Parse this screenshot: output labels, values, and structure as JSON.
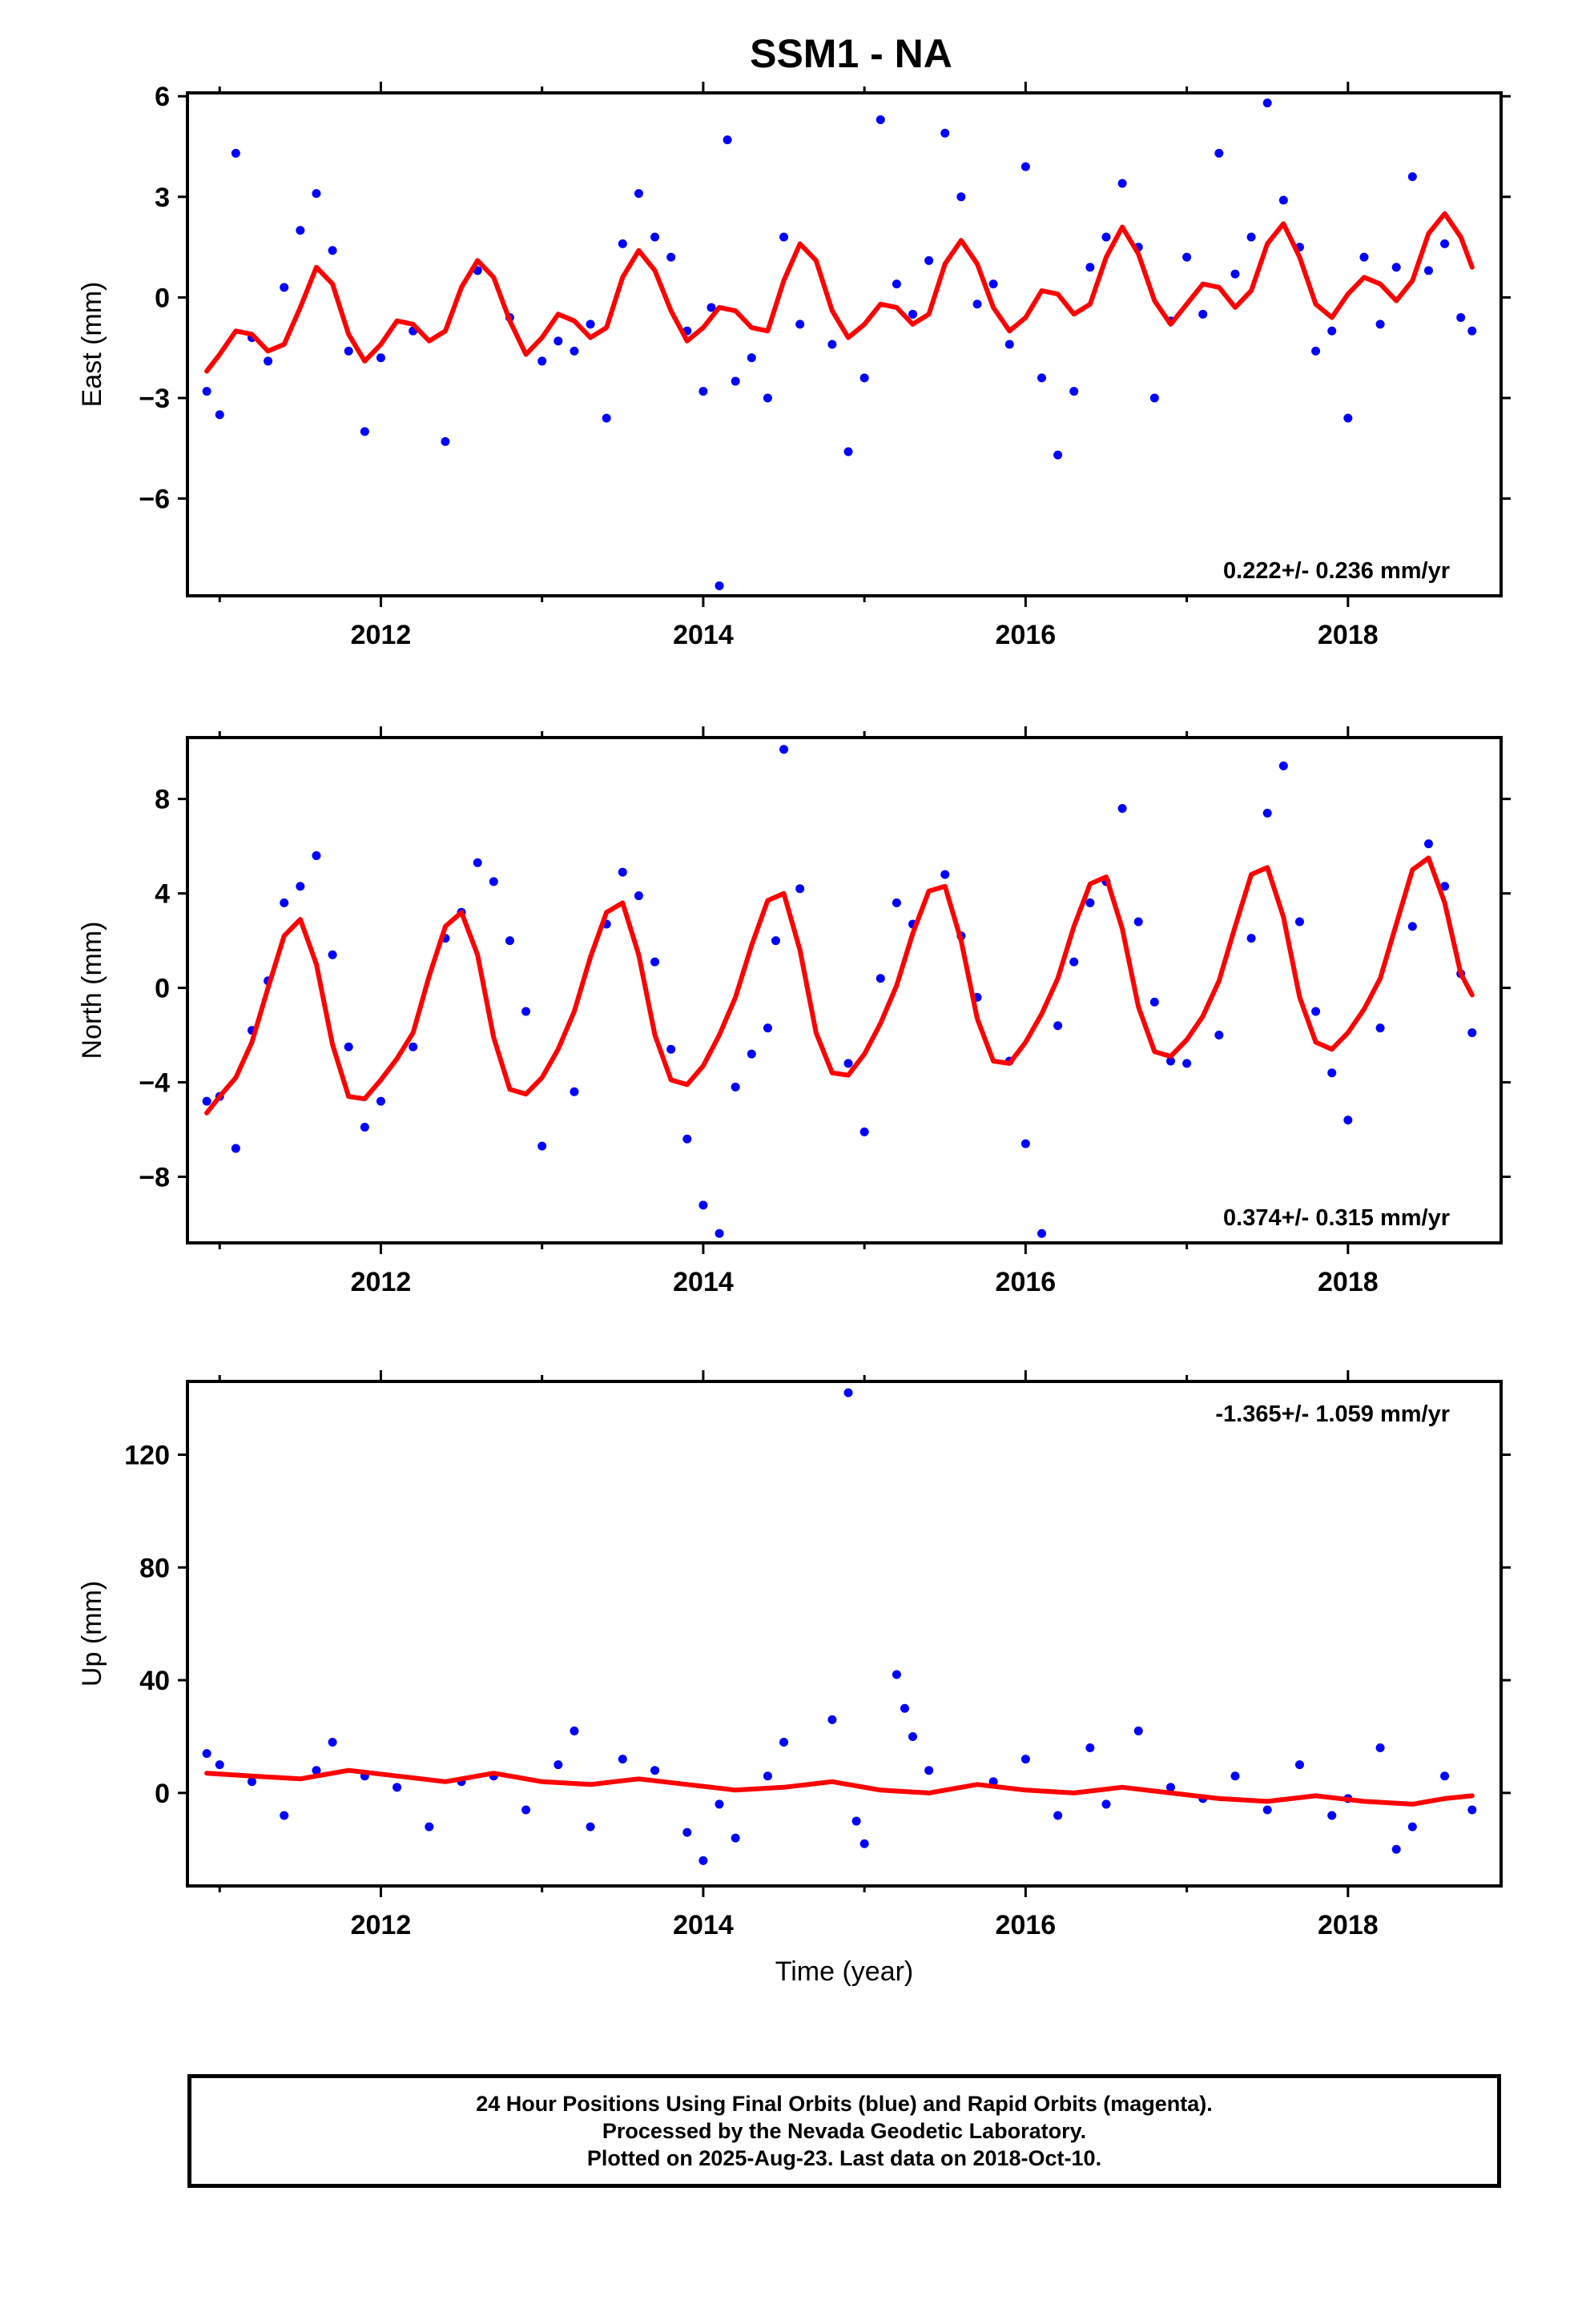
{
  "title": "SSM1 - NA",
  "footer": {
    "line1": "24 Hour Positions Using Final Orbits (blue) and Rapid Orbits (magenta).",
    "line2": "Processed by the Nevada Geodetic Laboratory.",
    "line3": "Plotted on 2025-Aug-23. Last data on 2018-Oct-10."
  },
  "colors": {
    "final_orbits": "#0000ff",
    "model_fit": "#ff0000",
    "axes": "#000000"
  },
  "chart_data": [
    {
      "type": "scatter",
      "panel": "east",
      "ylabel": "East (mm)",
      "xlabel": "",
      "xlim": [
        2010.8,
        2018.95
      ],
      "ylim": [
        -8.9,
        6.1
      ],
      "yticks": [
        -6,
        -3,
        0,
        3,
        6
      ],
      "ytick_labels": [
        "−6",
        "−3",
        "0",
        "3",
        "6"
      ],
      "xticks": [
        2012,
        2014,
        2016,
        2018
      ],
      "xtick_labels": [
        "2012",
        "2014",
        "2016",
        "2018"
      ],
      "grid": false,
      "annotation": "0.222+/- 0.236 mm/yr",
      "annotation_position": "bottom-right",
      "rate_mm_per_yr": 0.222,
      "rate_sigma_mm_per_yr": 0.236,
      "series": [
        {
          "name": "Final Orbits",
          "color": "#0000ff",
          "x": [
            2010.92,
            2011.0,
            2011.1,
            2011.2,
            2011.3,
            2011.4,
            2011.5,
            2011.6,
            2011.7,
            2011.8,
            2011.9,
            2012.0,
            2012.2,
            2012.4,
            2012.6,
            2012.8,
            2013.0,
            2013.1,
            2013.2,
            2013.3,
            2013.4,
            2013.5,
            2013.6,
            2013.7,
            2013.8,
            2013.9,
            2014.0,
            2014.05,
            2014.1,
            2014.15,
            2014.2,
            2014.3,
            2014.4,
            2014.5,
            2014.6,
            2014.8,
            2014.9,
            2015.0,
            2015.1,
            2015.2,
            2015.3,
            2015.4,
            2015.5,
            2015.6,
            2015.7,
            2015.8,
            2015.9,
            2016.0,
            2016.1,
            2016.2,
            2016.3,
            2016.4,
            2016.5,
            2016.6,
            2016.7,
            2016.8,
            2016.9,
            2017.0,
            2017.1,
            2017.2,
            2017.3,
            2017.4,
            2017.5,
            2017.6,
            2017.7,
            2017.8,
            2017.9,
            2018.0,
            2018.1,
            2018.2,
            2018.3,
            2018.4,
            2018.5,
            2018.6,
            2018.7,
            2018.77
          ],
          "values": [
            -2.8,
            -3.5,
            4.3,
            -1.2,
            -1.9,
            0.3,
            2.0,
            3.1,
            1.4,
            -1.6,
            -4.0,
            -1.8,
            -1.0,
            -4.3,
            0.8,
            -0.6,
            -1.9,
            -1.3,
            -1.6,
            -0.8,
            -3.6,
            1.6,
            3.1,
            1.8,
            1.2,
            -1.0,
            -2.8,
            -0.3,
            -8.6,
            4.7,
            -2.5,
            -1.8,
            -3.0,
            1.8,
            -0.8,
            -1.4,
            -4.6,
            -2.4,
            5.3,
            0.4,
            -0.5,
            1.1,
            4.9,
            3.0,
            -0.2,
            0.4,
            -1.4,
            3.9,
            -2.4,
            -4.7,
            -2.8,
            0.9,
            1.8,
            3.4,
            1.5,
            -3.0,
            -0.7,
            1.2,
            -0.5,
            4.3,
            0.7,
            1.8,
            5.8,
            2.9,
            1.5,
            -1.6,
            -1.0,
            -3.6,
            1.2,
            -0.8,
            0.9,
            3.6,
            0.8,
            1.6,
            -0.6,
            -1.0
          ]
        },
        {
          "name": "Model",
          "color": "#ff0000",
          "x": [
            2010.92,
            2011.0,
            2011.1,
            2011.2,
            2011.3,
            2011.4,
            2011.5,
            2011.6,
            2011.7,
            2011.8,
            2011.9,
            2012.0,
            2012.1,
            2012.2,
            2012.3,
            2012.4,
            2012.5,
            2012.6,
            2012.7,
            2012.8,
            2012.9,
            2013.0,
            2013.1,
            2013.2,
            2013.3,
            2013.4,
            2013.5,
            2013.6,
            2013.7,
            2013.8,
            2013.9,
            2014.0,
            2014.1,
            2014.2,
            2014.3,
            2014.4,
            2014.5,
            2014.6,
            2014.7,
            2014.8,
            2014.9,
            2015.0,
            2015.1,
            2015.2,
            2015.3,
            2015.4,
            2015.5,
            2015.6,
            2015.7,
            2015.8,
            2015.9,
            2016.0,
            2016.1,
            2016.2,
            2016.3,
            2016.4,
            2016.5,
            2016.6,
            2016.7,
            2016.8,
            2016.9,
            2017.0,
            2017.1,
            2017.2,
            2017.3,
            2017.4,
            2017.5,
            2017.6,
            2017.7,
            2017.8,
            2017.9,
            2018.0,
            2018.1,
            2018.2,
            2018.3,
            2018.4,
            2018.5,
            2018.6,
            2018.7,
            2018.77
          ],
          "values": [
            -2.2,
            -1.7,
            -1.0,
            -1.1,
            -1.6,
            -1.4,
            -0.3,
            0.9,
            0.4,
            -1.1,
            -1.9,
            -1.4,
            -0.7,
            -0.8,
            -1.3,
            -1.0,
            0.3,
            1.1,
            0.6,
            -0.7,
            -1.7,
            -1.2,
            -0.5,
            -0.7,
            -1.2,
            -0.9,
            0.6,
            1.4,
            0.8,
            -0.4,
            -1.3,
            -0.9,
            -0.3,
            -0.4,
            -0.9,
            -1.0,
            0.5,
            1.6,
            1.1,
            -0.4,
            -1.2,
            -0.8,
            -0.2,
            -0.3,
            -0.8,
            -0.5,
            1.0,
            1.7,
            1.0,
            -0.3,
            -1.0,
            -0.6,
            0.2,
            0.1,
            -0.5,
            -0.2,
            1.2,
            2.1,
            1.3,
            -0.1,
            -0.8,
            -0.2,
            0.4,
            0.3,
            -0.3,
            0.2,
            1.6,
            2.2,
            1.2,
            -0.2,
            -0.6,
            0.1,
            0.6,
            0.4,
            -0.1,
            0.5,
            1.9,
            2.5,
            1.8,
            0.9
          ]
        }
      ]
    },
    {
      "type": "scatter",
      "panel": "north",
      "ylabel": "North (mm)",
      "xlabel": "",
      "xlim": [
        2010.8,
        2018.95
      ],
      "ylim": [
        -10.8,
        10.6
      ],
      "yticks": [
        -8,
        -4,
        0,
        4,
        8
      ],
      "ytick_labels": [
        "−8",
        "−4",
        "0",
        "4",
        "8"
      ],
      "xticks": [
        2012,
        2014,
        2016,
        2018
      ],
      "xtick_labels": [
        "2012",
        "2014",
        "2016",
        "2018"
      ],
      "grid": false,
      "annotation": "0.374+/- 0.315 mm/yr",
      "annotation_position": "bottom-right",
      "rate_mm_per_yr": 0.374,
      "rate_sigma_mm_per_yr": 0.315,
      "series": [
        {
          "name": "Final Orbits",
          "color": "#0000ff",
          "x": [
            2010.92,
            2011.0,
            2011.1,
            2011.2,
            2011.3,
            2011.4,
            2011.5,
            2011.6,
            2011.7,
            2011.8,
            2011.9,
            2012.0,
            2012.2,
            2012.4,
            2012.5,
            2012.6,
            2012.7,
            2012.8,
            2012.9,
            2013.0,
            2013.2,
            2013.4,
            2013.5,
            2013.6,
            2013.7,
            2013.8,
            2013.9,
            2014.0,
            2014.1,
            2014.2,
            2014.3,
            2014.4,
            2014.45,
            2014.5,
            2014.6,
            2014.9,
            2015.0,
            2015.1,
            2015.2,
            2015.3,
            2015.5,
            2015.6,
            2015.7,
            2015.9,
            2016.0,
            2016.1,
            2016.2,
            2016.3,
            2016.4,
            2016.5,
            2016.6,
            2016.7,
            2016.8,
            2016.9,
            2017.0,
            2017.2,
            2017.4,
            2017.5,
            2017.6,
            2017.7,
            2017.8,
            2017.9,
            2018.0,
            2018.2,
            2018.4,
            2018.5,
            2018.6,
            2018.7,
            2018.77
          ],
          "values": [
            -4.8,
            -4.6,
            -6.8,
            -1.8,
            0.3,
            3.6,
            4.3,
            5.6,
            1.4,
            -2.5,
            -5.9,
            -4.8,
            -2.5,
            2.1,
            3.2,
            5.3,
            4.5,
            2.0,
            -1.0,
            -6.7,
            -4.4,
            2.7,
            4.9,
            3.9,
            1.1,
            -2.6,
            -6.4,
            -9.2,
            -10.4,
            -4.2,
            -2.8,
            -1.7,
            2.0,
            10.1,
            4.2,
            -3.2,
            -6.1,
            0.4,
            3.6,
            2.7,
            4.8,
            2.2,
            -0.4,
            -3.1,
            -6.6,
            -10.4,
            -1.6,
            1.1,
            3.6,
            4.5,
            7.6,
            2.8,
            -0.6,
            -3.1,
            -3.2,
            -2.0,
            2.1,
            7.4,
            9.4,
            2.8,
            -1.0,
            -3.6,
            -5.6,
            -1.7,
            2.6,
            6.1,
            4.3,
            0.6,
            -1.9
          ]
        },
        {
          "name": "Model",
          "color": "#ff0000",
          "x": [
            2010.92,
            2011.0,
            2011.1,
            2011.2,
            2011.3,
            2011.4,
            2011.5,
            2011.6,
            2011.7,
            2011.8,
            2011.9,
            2012.0,
            2012.1,
            2012.2,
            2012.3,
            2012.4,
            2012.5,
            2012.6,
            2012.7,
            2012.8,
            2012.9,
            2013.0,
            2013.1,
            2013.2,
            2013.3,
            2013.4,
            2013.5,
            2013.6,
            2013.7,
            2013.8,
            2013.9,
            2014.0,
            2014.1,
            2014.2,
            2014.3,
            2014.4,
            2014.5,
            2014.6,
            2014.7,
            2014.8,
            2014.9,
            2015.0,
            2015.1,
            2015.2,
            2015.3,
            2015.4,
            2015.5,
            2015.6,
            2015.7,
            2015.8,
            2015.9,
            2016.0,
            2016.1,
            2016.2,
            2016.3,
            2016.4,
            2016.5,
            2016.6,
            2016.7,
            2016.8,
            2016.9,
            2017.0,
            2017.1,
            2017.2,
            2017.3,
            2017.4,
            2017.5,
            2017.6,
            2017.7,
            2017.8,
            2017.9,
            2018.0,
            2018.1,
            2018.2,
            2018.3,
            2018.4,
            2018.5,
            2018.6,
            2018.7,
            2018.77
          ],
          "values": [
            -5.3,
            -4.6,
            -3.8,
            -2.3,
            0.0,
            2.2,
            2.9,
            1.0,
            -2.4,
            -4.6,
            -4.7,
            -3.9,
            -3.0,
            -1.9,
            0.5,
            2.6,
            3.2,
            1.4,
            -2.1,
            -4.3,
            -4.5,
            -3.8,
            -2.6,
            -1.0,
            1.3,
            3.2,
            3.6,
            1.4,
            -2.0,
            -3.9,
            -4.1,
            -3.3,
            -2.0,
            -0.4,
            1.8,
            3.7,
            4.0,
            1.6,
            -1.9,
            -3.6,
            -3.7,
            -2.8,
            -1.5,
            0.1,
            2.3,
            4.1,
            4.3,
            2.0,
            -1.3,
            -3.1,
            -3.2,
            -2.3,
            -1.1,
            0.4,
            2.6,
            4.4,
            4.7,
            2.5,
            -0.8,
            -2.7,
            -2.9,
            -2.2,
            -1.2,
            0.3,
            2.6,
            4.8,
            5.1,
            3.0,
            -0.4,
            -2.3,
            -2.6,
            -1.9,
            -0.9,
            0.4,
            2.7,
            5.0,
            5.5,
            3.6,
            0.6,
            -0.3
          ]
        }
      ]
    },
    {
      "type": "scatter",
      "panel": "up",
      "ylabel": "Up (mm)",
      "xlabel": "Time (year)",
      "xlim": [
        2010.8,
        2018.95
      ],
      "ylim": [
        -33,
        146
      ],
      "yticks": [
        0,
        40,
        80,
        120
      ],
      "ytick_labels": [
        "0",
        "40",
        "80",
        "120"
      ],
      "xticks": [
        2012,
        2014,
        2016,
        2018
      ],
      "xtick_labels": [
        "2012",
        "2014",
        "2016",
        "2018"
      ],
      "grid": false,
      "annotation": "-1.365+/- 1.059 mm/yr",
      "annotation_position": "top-right",
      "rate_mm_per_yr": -1.365,
      "rate_sigma_mm_per_yr": 1.059,
      "series": [
        {
          "name": "Final Orbits",
          "color": "#0000ff",
          "x": [
            2010.92,
            2011.0,
            2011.2,
            2011.4,
            2011.6,
            2011.7,
            2011.9,
            2012.1,
            2012.3,
            2012.5,
            2012.7,
            2012.9,
            2013.1,
            2013.2,
            2013.3,
            2013.5,
            2013.7,
            2013.9,
            2014.0,
            2014.1,
            2014.2,
            2014.4,
            2014.5,
            2014.8,
            2014.9,
            2014.95,
            2015.0,
            2015.2,
            2015.25,
            2015.3,
            2015.4,
            2015.8,
            2016.0,
            2016.2,
            2016.4,
            2016.5,
            2016.7,
            2016.9,
            2017.1,
            2017.3,
            2017.5,
            2017.7,
            2017.9,
            2018.0,
            2018.2,
            2018.3,
            2018.4,
            2018.6,
            2018.77
          ],
          "values": [
            14,
            10,
            4,
            -8,
            8,
            18,
            6,
            2,
            -12,
            4,
            6,
            -6,
            10,
            22,
            -12,
            12,
            8,
            -14,
            -24,
            -4,
            -16,
            6,
            18,
            26,
            142,
            -10,
            -18,
            42,
            30,
            20,
            8,
            4,
            12,
            -8,
            16,
            -4,
            22,
            2,
            -2,
            6,
            -6,
            10,
            -8,
            -2,
            16,
            -20,
            -12,
            6,
            -6
          ]
        },
        {
          "name": "Model",
          "color": "#ff0000",
          "x": [
            2010.92,
            2011.2,
            2011.5,
            2011.8,
            2012.1,
            2012.4,
            2012.7,
            2013.0,
            2013.3,
            2013.6,
            2013.9,
            2014.2,
            2014.5,
            2014.8,
            2015.1,
            2015.4,
            2015.7,
            2016.0,
            2016.3,
            2016.6,
            2016.9,
            2017.2,
            2017.5,
            2017.8,
            2018.1,
            2018.4,
            2018.6,
            2018.77
          ],
          "values": [
            7,
            6,
            5,
            8,
            6,
            4,
            7,
            4,
            3,
            5,
            3,
            1,
            2,
            4,
            1,
            0,
            3,
            1,
            0,
            2,
            0,
            -2,
            -3,
            -1,
            -3,
            -4,
            -2,
            -1
          ]
        }
      ]
    }
  ]
}
